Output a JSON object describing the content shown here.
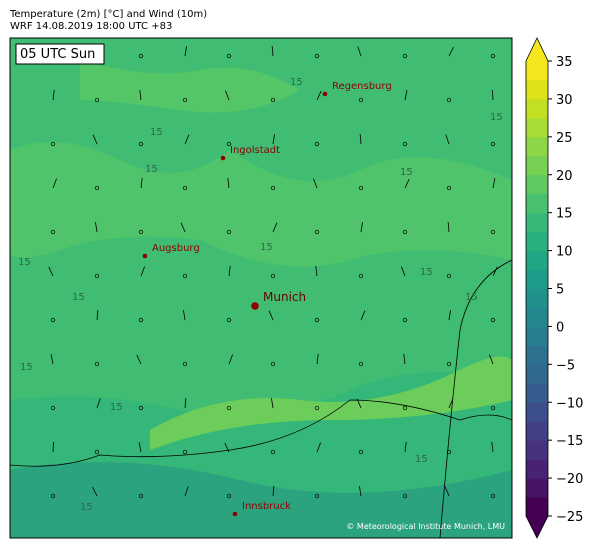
{
  "header": {
    "title": "Temperature (2m) [°C] and Wind (10m)",
    "subtitle": "WRF 14.08.2019 18:00 UTC +83"
  },
  "map": {
    "time_label": "05 UTC Sun",
    "cities": [
      {
        "label": "Regensburg"
      },
      {
        "label": "Ingolstadt"
      },
      {
        "label": "Augsburg"
      },
      {
        "label": "Munich"
      },
      {
        "label": "Innsbruck"
      }
    ],
    "contour_label": "15",
    "credit": "© Meteorological Institute Munich, LMU"
  },
  "colorbar": {
    "lim": [
      -25,
      35
    ],
    "ticks": [
      {
        "value": -25,
        "label": "−25"
      },
      {
        "value": -20,
        "label": "−20"
      },
      {
        "value": -15,
        "label": "−15"
      },
      {
        "value": -10,
        "label": "−10"
      },
      {
        "value": -5,
        "label": "−5"
      },
      0,
      5,
      10,
      15,
      20,
      25,
      30,
      35
    ],
    "colors": [
      "#440154",
      "#471365",
      "#482374",
      "#46327e",
      "#424086",
      "#3c4f8a",
      "#365c8d",
      "#31688e",
      "#2c728e",
      "#287d8e",
      "#24878e",
      "#21918c",
      "#1f9b89",
      "#21a685",
      "#2ab07f",
      "#37b878",
      "#48c16e",
      "#5ec962",
      "#75d054",
      "#8dd645",
      "#a8db34",
      "#c2df23",
      "#dde318",
      "#f5e61e"
    ]
  }
}
